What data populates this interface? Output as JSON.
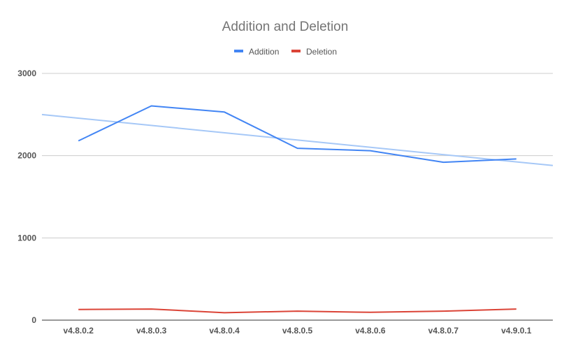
{
  "chart_data": {
    "type": "line",
    "title": "Addition and Deletion",
    "xlabel": "",
    "ylabel": "",
    "categories": [
      "v4.8.0.2",
      "v4.8.0.3",
      "v4.8.0.4",
      "v4.8.0.5",
      "v4.8.0.6",
      "v4.8.0.7",
      "v4.9.0.1"
    ],
    "series": [
      {
        "name": "Addition",
        "color": "#4285f4",
        "values": [
          2180,
          2605,
          2530,
          2090,
          2060,
          1920,
          1960
        ]
      },
      {
        "name": "Deletion",
        "color": "#db4437",
        "values": [
          130,
          135,
          90,
          110,
          95,
          110,
          135
        ]
      }
    ],
    "trendline": {
      "series": "Addition",
      "color": "#a6c8f7",
      "x_start": -0.5,
      "y_start": 2500,
      "x_end": 6.5,
      "y_end": 1880
    },
    "ylim": [
      0,
      3000
    ],
    "yticks": [
      "0",
      "1000",
      "2000",
      "3000"
    ],
    "ytick_values": [
      0,
      1000,
      2000,
      3000
    ],
    "grid": true,
    "legend_position": "top"
  }
}
